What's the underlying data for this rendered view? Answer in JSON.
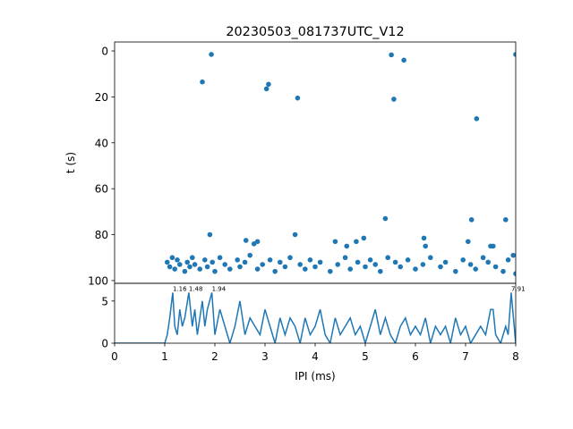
{
  "chart_data": [
    {
      "type": "scatter",
      "title": "20230503_081737UTC_V12",
      "ylabel": "t (s)",
      "color": "#1f77b4",
      "x": [
        1.75,
        1.93,
        3.03,
        3.07,
        3.65,
        5.52,
        5.57,
        5.77,
        7.22,
        8.0,
        1.9,
        2.62,
        2.78,
        2.85,
        3.6,
        4.4,
        4.63,
        4.82,
        4.97,
        5.4,
        6.17,
        6.2,
        7.05,
        7.12,
        7.5,
        7.55,
        7.8,
        1.05,
        1.1,
        1.15,
        1.2,
        1.25,
        1.3,
        1.4,
        1.45,
        1.5,
        1.55,
        1.6,
        1.7,
        1.8,
        1.85,
        1.95,
        2.0,
        2.1,
        2.2,
        2.3,
        2.45,
        2.5,
        2.6,
        2.7,
        2.85,
        2.95,
        3.1,
        3.2,
        3.3,
        3.4,
        3.5,
        3.7,
        3.8,
        3.9,
        4.0,
        4.1,
        4.3,
        4.45,
        4.6,
        4.7,
        4.85,
        5.0,
        5.1,
        5.2,
        5.3,
        5.45,
        5.6,
        5.7,
        5.85,
        6.0,
        6.15,
        6.3,
        6.5,
        6.6,
        6.8,
        6.95,
        7.1,
        7.2,
        7.35,
        7.45,
        7.6,
        7.75,
        7.85,
        7.95,
        8.0
      ],
      "values": [
        13.5,
        1.5,
        16.5,
        14.5,
        20.5,
        1.7,
        21,
        4,
        29.5,
        1.5,
        80,
        82.5,
        84,
        83,
        80,
        83,
        85,
        83,
        81.5,
        73,
        81.5,
        85,
        83,
        73.5,
        85,
        85,
        73.5,
        92,
        94,
        90,
        95,
        91,
        93,
        96,
        92,
        94,
        90,
        93,
        95,
        91,
        94,
        92,
        96,
        90,
        93,
        95,
        91,
        94,
        92,
        89,
        95,
        93,
        91,
        96,
        92,
        94,
        90,
        93,
        95,
        91,
        94,
        92,
        96,
        93,
        90,
        95,
        92,
        94,
        91,
        93,
        96,
        90,
        92,
        94,
        91,
        95,
        93,
        90,
        94,
        92,
        96,
        91,
        93,
        95,
        90,
        92,
        94,
        96,
        91,
        89,
        97
      ],
      "xlim": [
        0,
        8
      ],
      "ylim": [
        -3.9,
        101.2
      ],
      "y_inverted": true,
      "yticks": [
        0,
        20,
        40,
        60,
        80,
        100
      ]
    },
    {
      "type": "line",
      "xlabel": "IPI (ms)",
      "color": "#1f77b4",
      "x": [
        0,
        1.0,
        1.05,
        1.1,
        1.16,
        1.2,
        1.25,
        1.3,
        1.35,
        1.4,
        1.48,
        1.55,
        1.6,
        1.65,
        1.7,
        1.75,
        1.8,
        1.85,
        1.94,
        2.0,
        2.1,
        2.2,
        2.3,
        2.4,
        2.5,
        2.6,
        2.7,
        2.8,
        2.9,
        3.0,
        3.1,
        3.2,
        3.3,
        3.4,
        3.5,
        3.6,
        3.7,
        3.8,
        3.9,
        4.0,
        4.1,
        4.2,
        4.3,
        4.4,
        4.5,
        4.6,
        4.7,
        4.8,
        4.9,
        5.0,
        5.1,
        5.2,
        5.3,
        5.4,
        5.5,
        5.6,
        5.7,
        5.8,
        5.9,
        6.0,
        6.1,
        6.2,
        6.3,
        6.4,
        6.5,
        6.6,
        6.7,
        6.8,
        6.9,
        7.0,
        7.1,
        7.2,
        7.3,
        7.4,
        7.5,
        7.55,
        7.6,
        7.7,
        7.8,
        7.85,
        7.91,
        8.0
      ],
      "values": [
        0,
        0,
        1,
        3,
        6,
        2,
        1,
        4,
        2,
        3,
        6,
        2,
        4,
        1,
        3,
        5,
        2,
        4,
        6,
        1,
        4,
        2,
        0,
        2,
        5,
        1,
        3,
        2,
        1,
        4,
        2,
        0,
        3,
        1,
        3,
        2,
        0,
        3,
        1,
        2,
        4,
        1,
        0,
        3,
        1,
        2,
        3,
        1,
        2,
        0,
        2,
        4,
        1,
        3,
        1,
        0,
        2,
        3,
        1,
        2,
        1,
        3,
        0,
        2,
        1,
        2,
        0,
        3,
        1,
        2,
        0,
        1,
        2,
        1,
        4,
        4,
        1,
        0,
        2,
        1,
        6,
        0
      ],
      "annotations": [
        {
          "text": "1.16",
          "x": 1.16,
          "y": 6
        },
        {
          "text": "1.48",
          "x": 1.48,
          "y": 6
        },
        {
          "text": "1.94",
          "x": 1.94,
          "y": 6
        },
        {
          "text": "7.91",
          "x": 7.91,
          "y": 6
        }
      ],
      "xlim": [
        0,
        8
      ],
      "xticks": [
        0,
        1,
        2,
        3,
        4,
        5,
        6,
        7,
        8
      ],
      "ylim": [
        0,
        7.1
      ],
      "yticks": [
        0,
        5
      ]
    }
  ]
}
